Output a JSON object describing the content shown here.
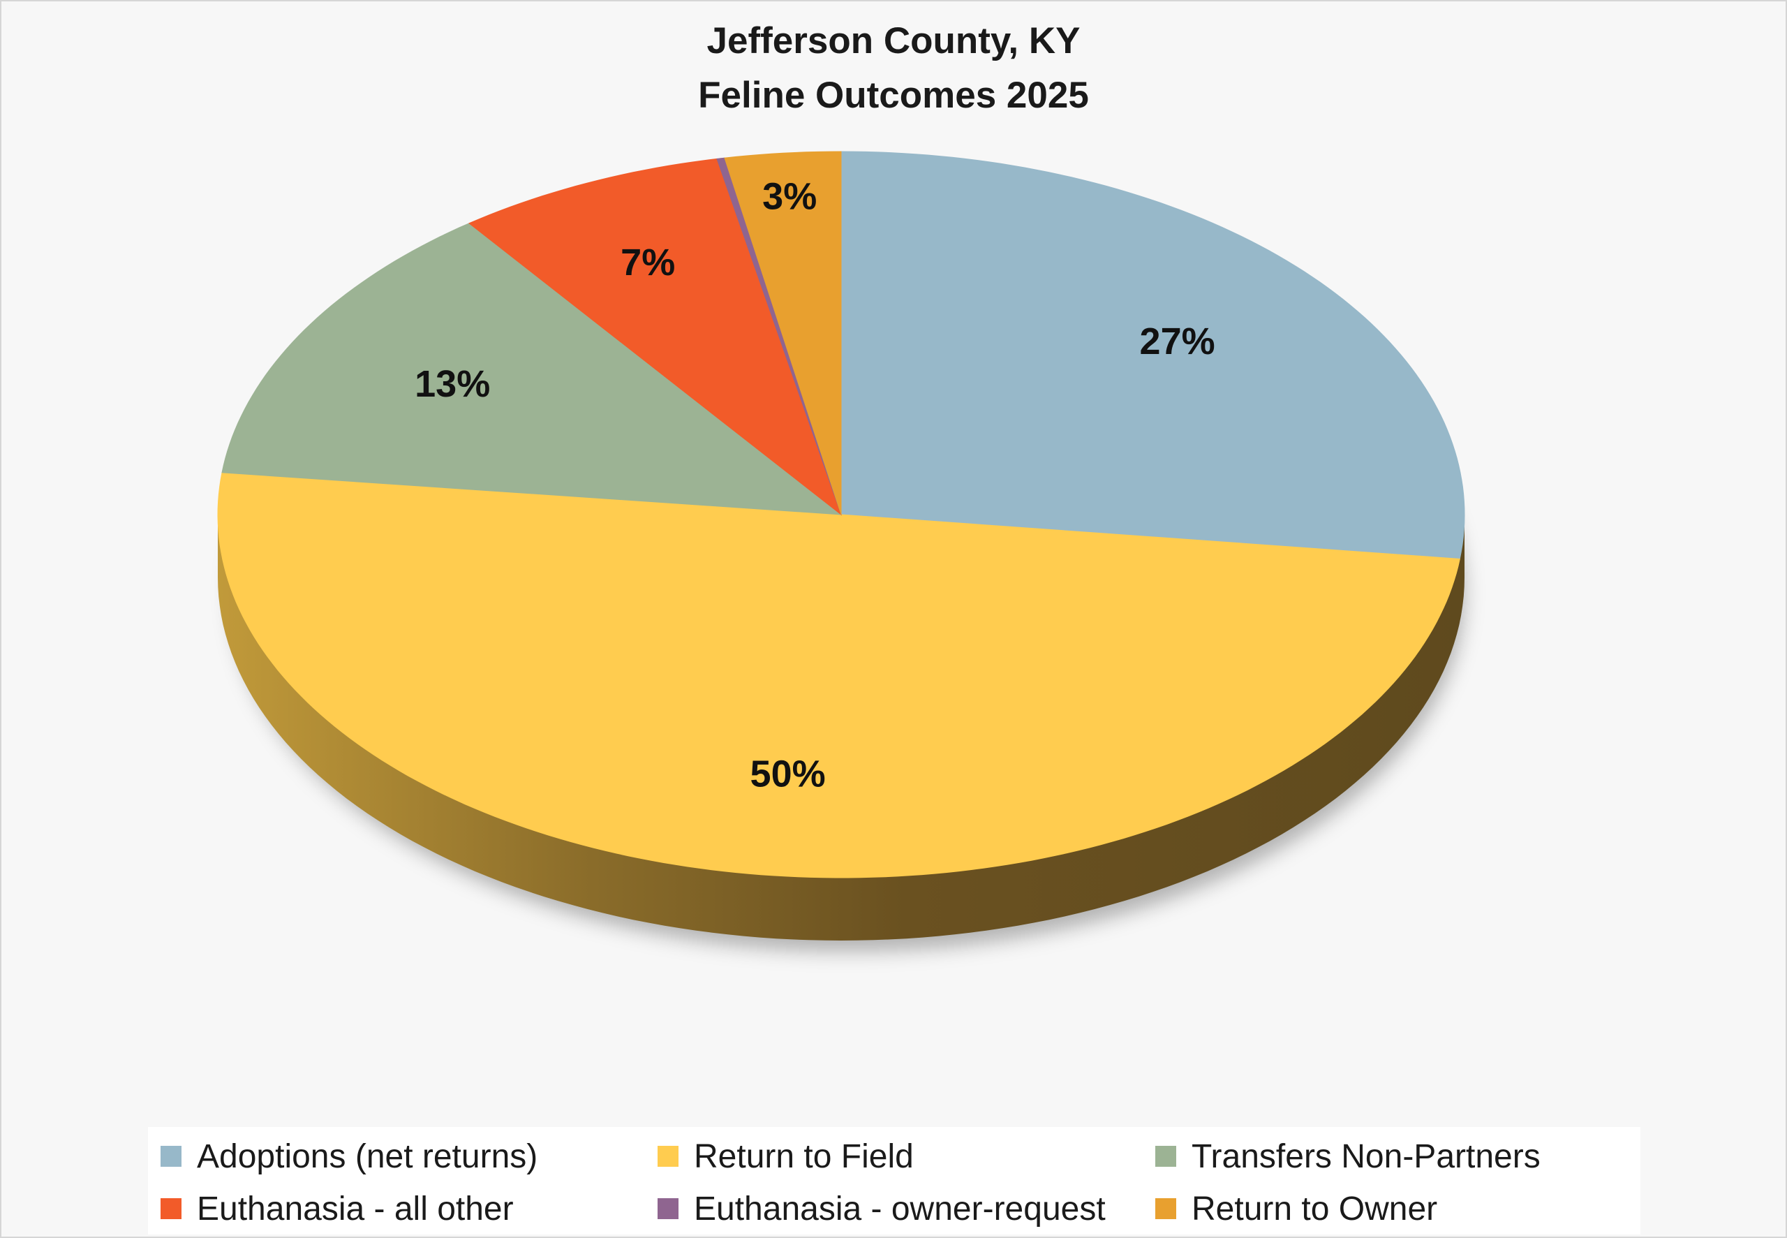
{
  "chart_data": {
    "type": "pie",
    "title_lines": [
      "Jefferson County, KY",
      "Feline Outcomes 2025"
    ],
    "slices": [
      {
        "name": "Adoptions (net returns)",
        "value": 27,
        "label": "27%",
        "color": "#97b8c9"
      },
      {
        "name": "Return to Field",
        "value": 50,
        "label": "50%",
        "color": "#ffcc4f"
      },
      {
        "name": "Transfers Non-Partners",
        "value": 13,
        "label": "13%",
        "color": "#9cb394"
      },
      {
        "name": "Euthanasia - all other",
        "value": 7,
        "label": "7%",
        "color": "#f25b29"
      },
      {
        "name": "Euthanasia - owner-request",
        "value": 0.2,
        "label": "",
        "color": "#8f6590"
      },
      {
        "name": "Return to Owner",
        "value": 3,
        "label": "3%",
        "color": "#e8a02f"
      }
    ],
    "legend_position": "bottom",
    "style": "3d-tilted"
  }
}
